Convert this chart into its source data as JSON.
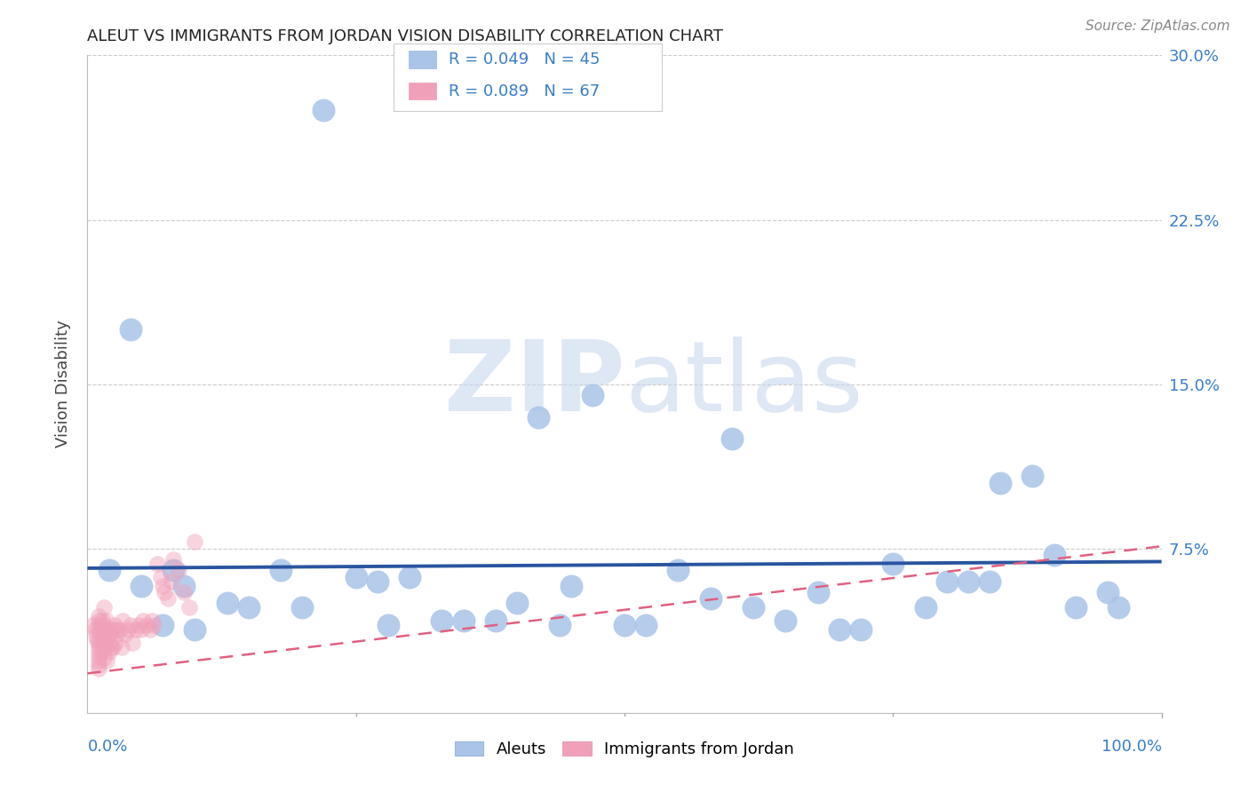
{
  "title": "ALEUT VS IMMIGRANTS FROM JORDAN VISION DISABILITY CORRELATION CHART",
  "source": "Source: ZipAtlas.com",
  "ylabel": "Vision Disability",
  "xlim": [
    0,
    1.0
  ],
  "ylim": [
    0,
    0.3
  ],
  "yticks": [
    0.0,
    0.075,
    0.15,
    0.225,
    0.3
  ],
  "yticklabels": [
    "",
    "7.5%",
    "15.0%",
    "22.5%",
    "30.0%"
  ],
  "aleut_color": "#aac4e8",
  "aleut_edge_color": "#aac4e8",
  "jordan_color": "#f0a0b8",
  "jordan_edge_color": "#f0a0b8",
  "line_aleut_color": "#2955a0",
  "line_jordan_color": "#e06080",
  "watermark_color": "#dce8f5",
  "title_color": "#222222",
  "source_color": "#888888",
  "ylabel_color": "#444444",
  "ytick_color": "#3a7dc9",
  "xtick_color": "#3a7dc9",
  "grid_color": "#cccccc",
  "legend_edge_color": "#cccccc",
  "aleut_line_y0": 0.066,
  "aleut_line_y1": 0.069,
  "jordan_line_y0": 0.018,
  "jordan_line_y1": 0.076,
  "aleut_scatter_x": [
    0.22,
    0.04,
    0.42,
    0.47,
    0.6,
    0.85,
    0.02,
    0.05,
    0.08,
    0.18,
    0.27,
    0.4,
    0.55,
    0.62,
    0.68,
    0.8,
    0.88,
    0.95,
    0.07,
    0.13,
    0.2,
    0.28,
    0.35,
    0.44,
    0.52,
    0.58,
    0.65,
    0.72,
    0.78,
    0.84,
    0.9,
    0.96,
    0.09,
    0.3,
    0.5,
    0.75,
    0.38,
    0.15,
    0.25,
    0.1,
    0.45,
    0.7,
    0.82,
    0.92,
    0.33
  ],
  "aleut_scatter_y": [
    0.275,
    0.175,
    0.135,
    0.145,
    0.125,
    0.105,
    0.065,
    0.058,
    0.065,
    0.065,
    0.06,
    0.05,
    0.065,
    0.048,
    0.055,
    0.06,
    0.108,
    0.055,
    0.04,
    0.05,
    0.048,
    0.04,
    0.042,
    0.04,
    0.04,
    0.052,
    0.042,
    0.038,
    0.048,
    0.06,
    0.072,
    0.048,
    0.058,
    0.062,
    0.04,
    0.068,
    0.042,
    0.048,
    0.062,
    0.038,
    0.058,
    0.038,
    0.06,
    0.048,
    0.042
  ],
  "jordan_scatter_x": [
    0.005,
    0.007,
    0.008,
    0.009,
    0.01,
    0.01,
    0.01,
    0.01,
    0.01,
    0.01,
    0.01,
    0.01,
    0.01,
    0.01,
    0.011,
    0.012,
    0.013,
    0.013,
    0.014,
    0.014,
    0.015,
    0.015,
    0.015,
    0.015,
    0.015,
    0.016,
    0.017,
    0.018,
    0.018,
    0.019,
    0.02,
    0.02,
    0.02,
    0.021,
    0.022,
    0.023,
    0.024,
    0.025,
    0.026,
    0.027,
    0.028,
    0.03,
    0.032,
    0.033,
    0.035,
    0.038,
    0.04,
    0.042,
    0.045,
    0.048,
    0.05,
    0.052,
    0.055,
    0.058,
    0.06,
    0.062,
    0.065,
    0.068,
    0.07,
    0.072,
    0.075,
    0.078,
    0.08,
    0.085,
    0.09,
    0.095,
    0.1
  ],
  "jordan_scatter_y": [
    0.04,
    0.038,
    0.035,
    0.033,
    0.032,
    0.03,
    0.028,
    0.026,
    0.024,
    0.022,
    0.02,
    0.038,
    0.042,
    0.044,
    0.04,
    0.036,
    0.032,
    0.028,
    0.038,
    0.042,
    0.04,
    0.036,
    0.03,
    0.025,
    0.048,
    0.038,
    0.03,
    0.024,
    0.042,
    0.035,
    0.038,
    0.032,
    0.028,
    0.036,
    0.03,
    0.038,
    0.03,
    0.04,
    0.032,
    0.038,
    0.036,
    0.038,
    0.03,
    0.042,
    0.036,
    0.038,
    0.04,
    0.032,
    0.038,
    0.04,
    0.038,
    0.042,
    0.04,
    0.038,
    0.042,
    0.04,
    0.068,
    0.062,
    0.058,
    0.055,
    0.052,
    0.06,
    0.07,
    0.065,
    0.055,
    0.048,
    0.078
  ]
}
